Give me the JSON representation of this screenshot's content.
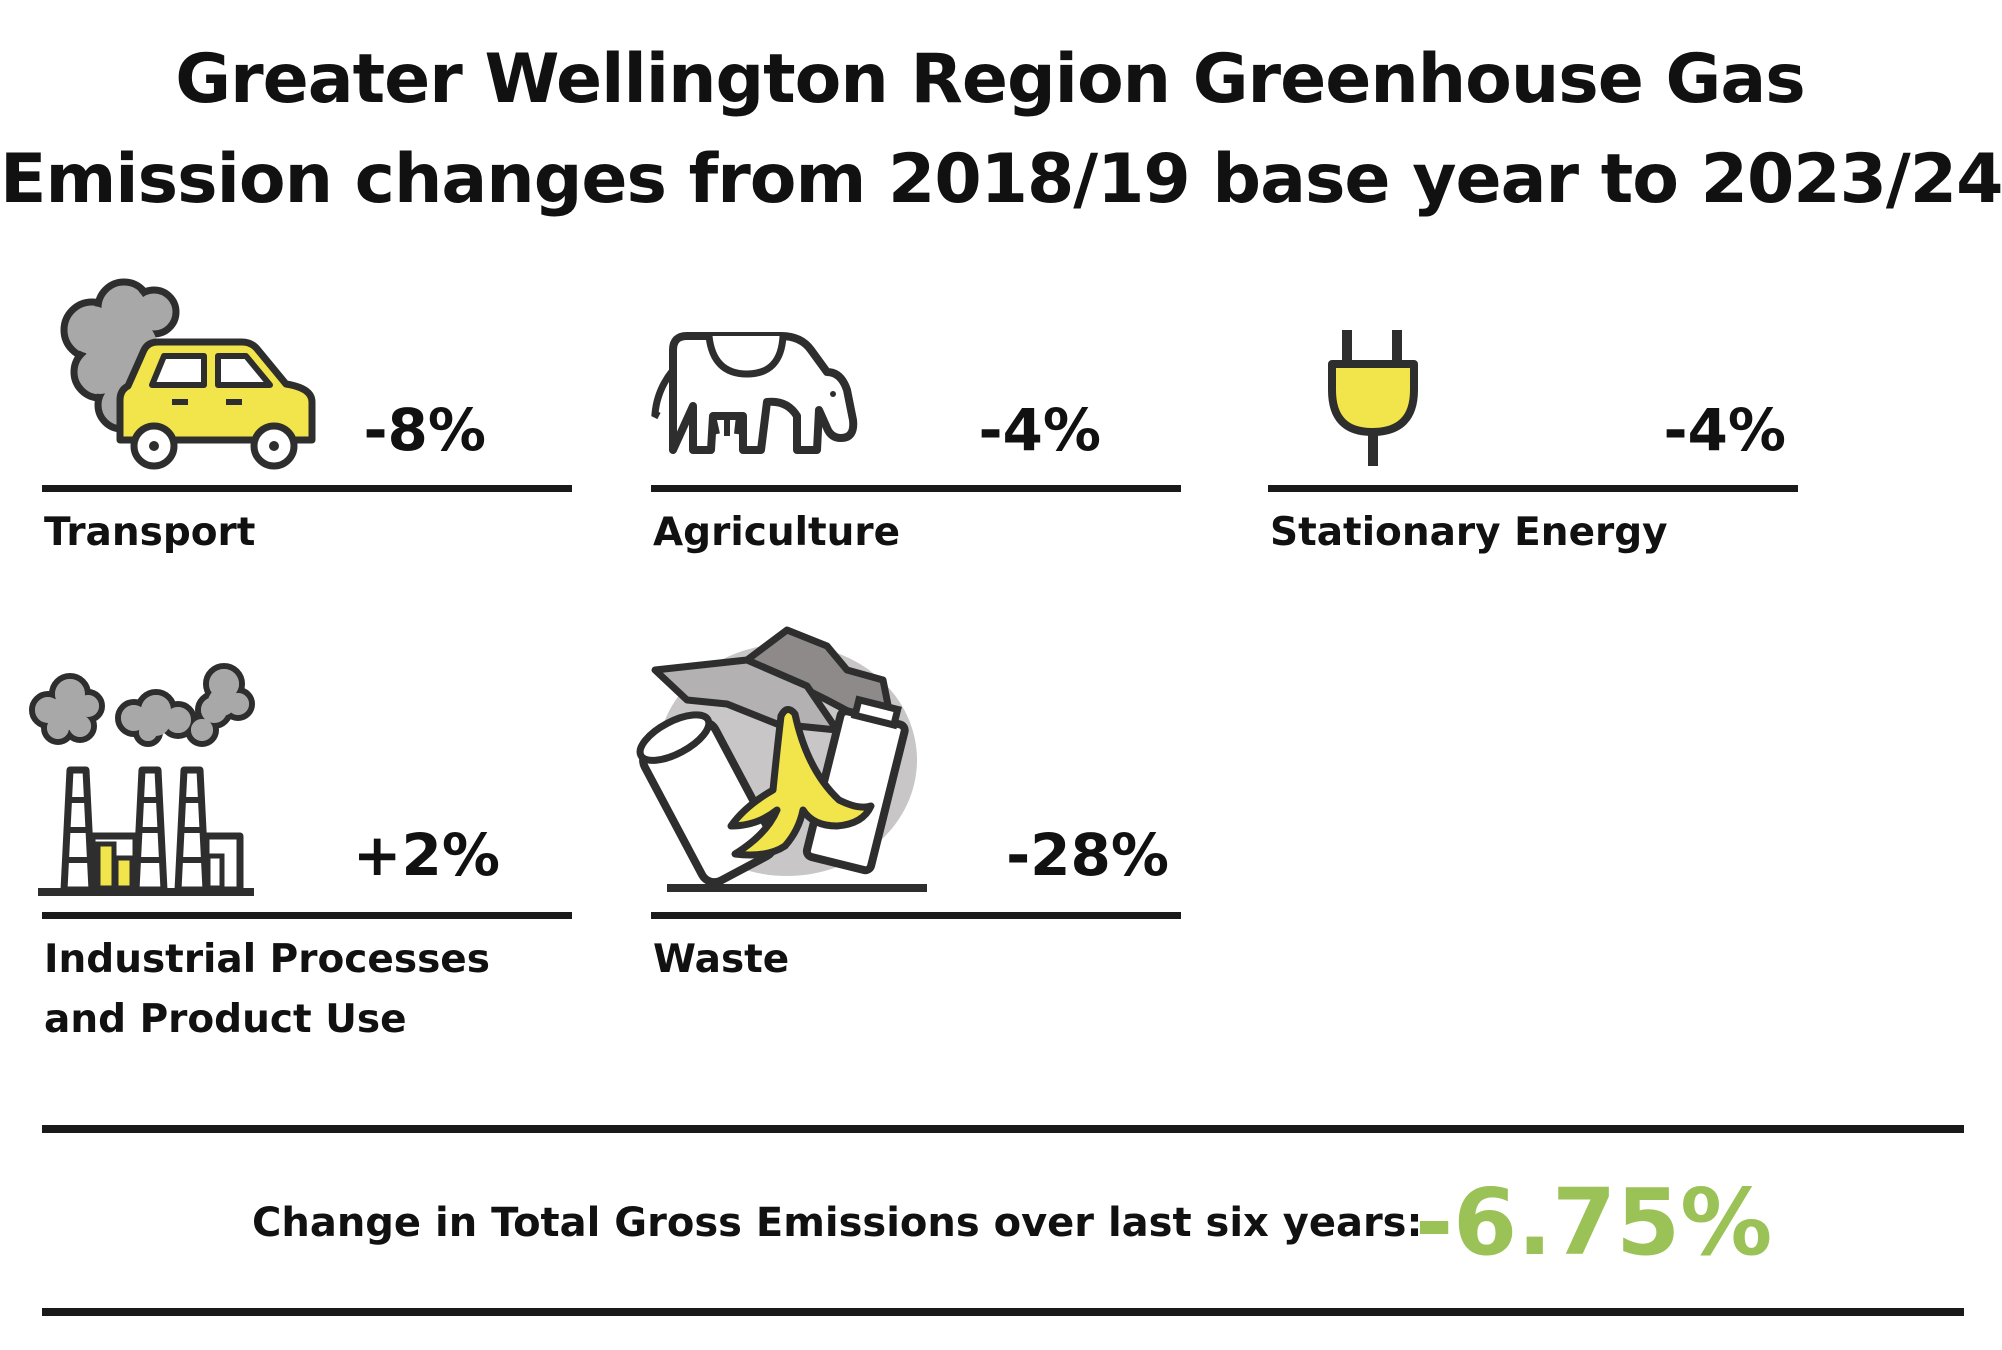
{
  "title": {
    "line1": "Greater Wellington Region Greenhouse Gas",
    "line2": "Emission changes from 2018/19 base year to 2023/24"
  },
  "sectors": [
    {
      "label": "Transport",
      "change_percent": -8,
      "change_text": "-8%",
      "icon": "car-with-smoke-icon"
    },
    {
      "label": "Agriculture",
      "change_percent": -4,
      "change_text": "-4%",
      "icon": "cow-icon"
    },
    {
      "label": "Stationary Energy",
      "change_percent": -4,
      "change_text": "-4%",
      "icon": "power-plug-icon"
    },
    {
      "label_line1": "Industrial Processes",
      "label_line2": "and Product Use",
      "change_percent": 2,
      "change_text": "+2%",
      "icon": "factory-smoke-icon"
    },
    {
      "label": "Waste",
      "change_percent": -28,
      "change_text": "-28%",
      "icon": "rubbish-pile-icon"
    }
  ],
  "total": {
    "label": "Change in Total Gross Emissions over last six years:",
    "value": "-6.75%",
    "value_percent": -6.75
  },
  "colors": {
    "yellow": "#f2e44b",
    "smoke": "#a8a8a8",
    "outline": "#2e2e2e",
    "rule": "#1a1a1a",
    "total_value": "#9bc257"
  }
}
